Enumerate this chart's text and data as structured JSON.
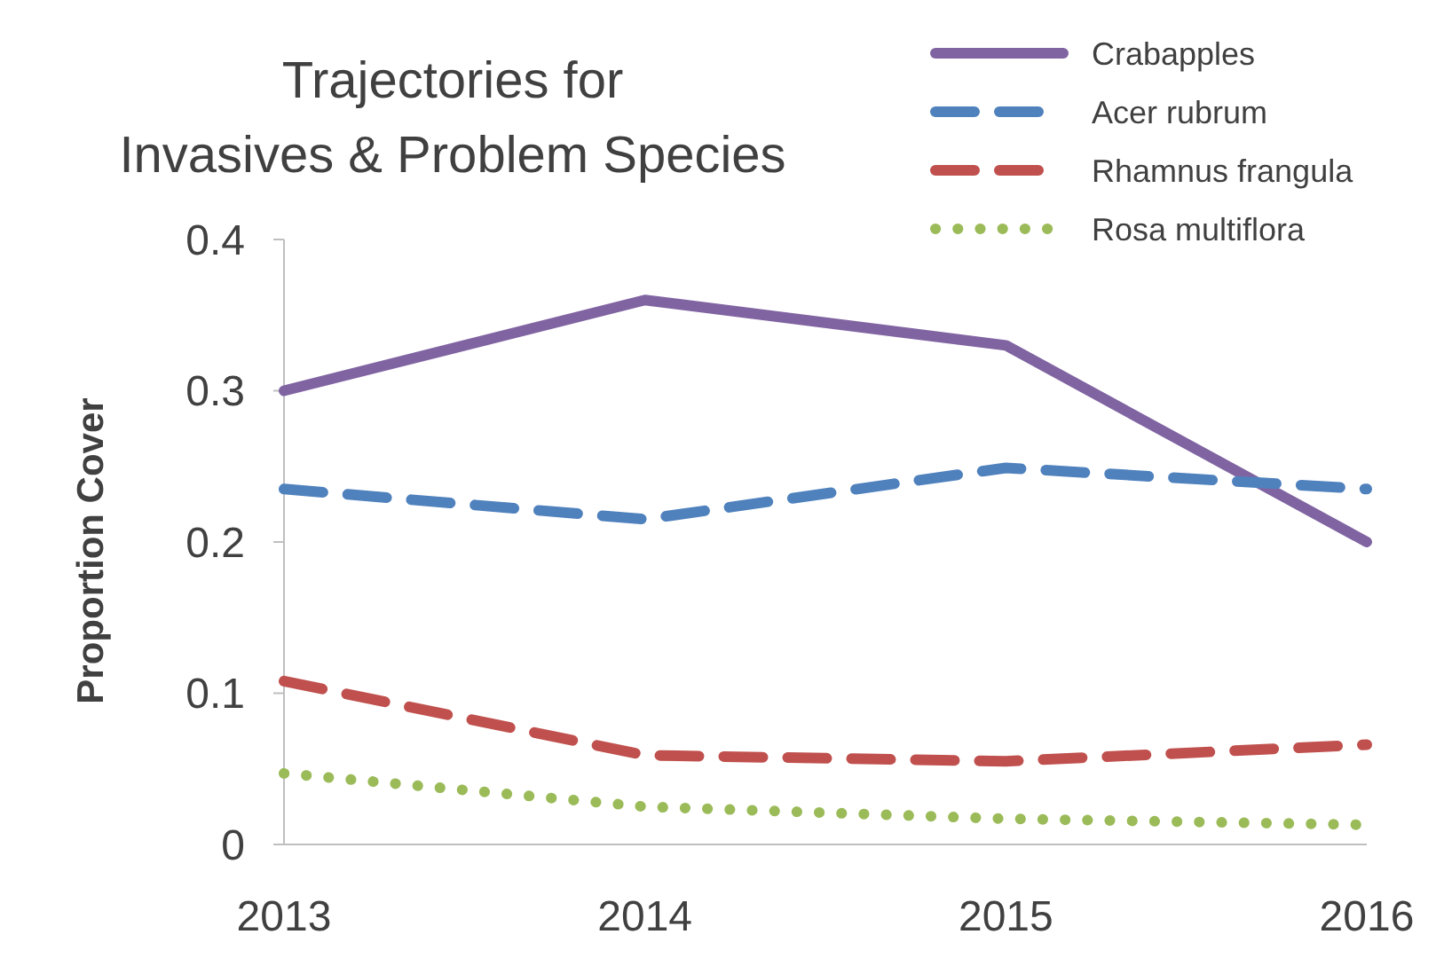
{
  "chart_data": {
    "type": "line",
    "title": "Trajectories for\nInvasives &  Problem Species",
    "ylabel": "Proportion Cover",
    "categories": [
      "2013",
      "2014",
      "2015",
      "2016"
    ],
    "series": [
      {
        "name": "Crabapples",
        "color": "#8064a2",
        "line_style": "solid",
        "values": [
          0.3,
          0.36,
          0.33,
          0.2
        ]
      },
      {
        "name": "Acer rubrum",
        "color": "#4f81bd",
        "line_style": "dashed",
        "values": [
          0.235,
          0.215,
          0.249,
          0.235
        ]
      },
      {
        "name": "Rhamnus frangula",
        "color": "#c0504d",
        "line_style": "dashed",
        "values": [
          0.108,
          0.059,
          0.055,
          0.066
        ]
      },
      {
        "name": "Rosa multiflora",
        "color": "#9bbb59",
        "line_style": "dotted",
        "values": [
          0.047,
          0.025,
          0.017,
          0.013
        ]
      }
    ],
    "ylim": [
      0,
      0.4
    ],
    "yticks": [
      0,
      0.1,
      0.2,
      0.3,
      0.4
    ],
    "grid": false,
    "legend": "top right",
    "marker": "none"
  }
}
